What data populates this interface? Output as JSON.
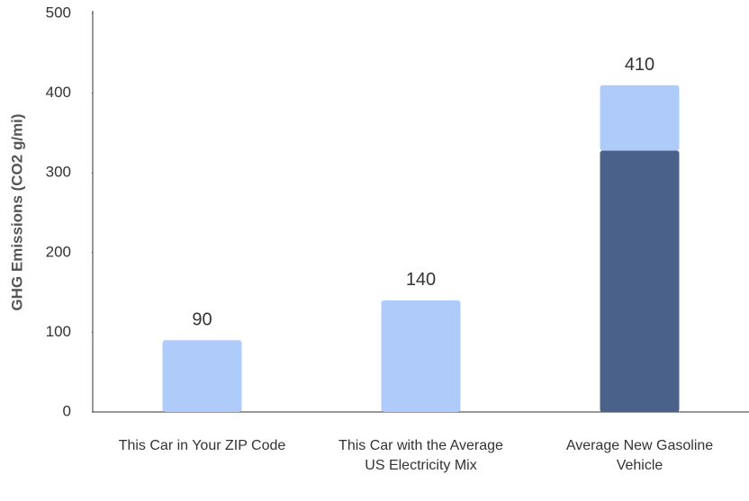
{
  "chart_data": {
    "type": "stacked_bar",
    "y_label": "GHG Emissions (CO2 g/mi)",
    "categories": [
      "This Car in Your ZIP Code",
      "This Car with the Average US Electricity Mix",
      "Average New Gasoline Vehicle"
    ],
    "series": [
      {
        "color": "#4a6189",
        "values": [
          0,
          0,
          328
        ]
      },
      {
        "color": "#aecbfa",
        "values": [
          90,
          140,
          82
        ]
      }
    ],
    "totals": [
      90,
      140,
      410
    ],
    "ylim": [
      0,
      500
    ],
    "yticks": [
      0,
      100,
      200,
      300,
      400,
      500
    ]
  }
}
